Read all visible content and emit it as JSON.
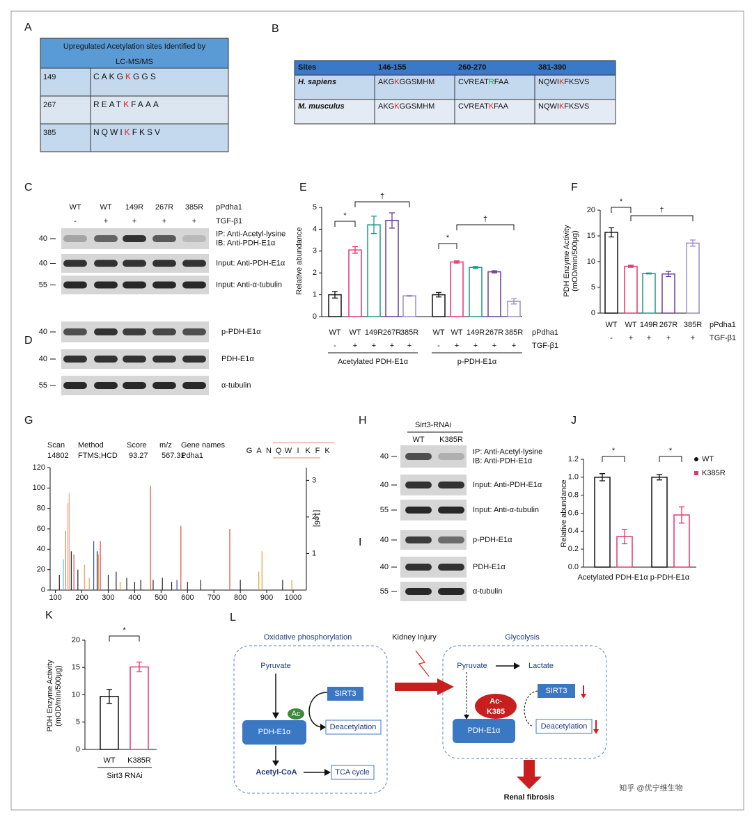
{
  "figure": {
    "A": {
      "letter": "A",
      "header": [
        "Upregulated Acetylation sites Identified by",
        "LC-MS/MS"
      ],
      "rows": [
        {
          "site": 149,
          "seq": [
            "CAKG",
            "K",
            "GGS"
          ]
        },
        {
          "site": 267,
          "seq": [
            "REAT",
            "K",
            "FAAA"
          ]
        },
        {
          "site": 385,
          "seq": [
            "NQWI",
            "K",
            "FKSV"
          ]
        }
      ]
    },
    "B": {
      "letter": "B",
      "header": [
        "Sites",
        "146-155",
        "260-270",
        "381-390"
      ],
      "rows": [
        {
          "species": "H. sapiens",
          "cells": [
            [
              "AKG",
              "K",
              "GGSMHM"
            ],
            [
              "CVREAT",
              "R",
              "FAA"
            ],
            [
              "NQWI",
              "K",
              "FKSVS"
            ]
          ],
          "colors": [
            "#e02020",
            "#1a9a50",
            "#e02020"
          ]
        },
        {
          "species": "M. musculus",
          "cells": [
            [
              "AKG",
              "K",
              "GGSMHM"
            ],
            [
              "CVREAT",
              "K",
              "FAA"
            ],
            [
              "NQWI",
              "K",
              "FKSVS"
            ]
          ],
          "colors": [
            "#e02020",
            "#e02020",
            "#e02020"
          ]
        }
      ]
    },
    "C": {
      "letter": "C",
      "lanes": [
        "WT",
        "WT",
        "149R",
        "267R",
        "385R"
      ],
      "lanes_label": "pPdha1",
      "tgf": [
        "-",
        "+",
        "+",
        "+",
        "+"
      ],
      "tgf_label": "TGF-β1",
      "blots": [
        {
          "mw": 40,
          "label": [
            "IP: Anti-Acetyl-lysine",
            "IB: Anti-PDH-E1α"
          ]
        },
        {
          "mw": 40,
          "label": [
            "Input: Anti-PDH-E1α"
          ]
        },
        {
          "mw": 55,
          "label": [
            "Input: Anti-α-tubulin"
          ]
        }
      ]
    },
    "D": {
      "letter": "D",
      "blots": [
        {
          "mw": 40,
          "label": [
            "p-PDH-E1α"
          ]
        },
        {
          "mw": 40,
          "label": [
            "PDH-E1α"
          ]
        },
        {
          "mw": 55,
          "label": [
            "α-tubulin"
          ]
        }
      ]
    },
    "H": {
      "letter": "H",
      "group": "Sirt3-RNAi",
      "lanes": [
        "WT",
        "K385R"
      ],
      "blots": [
        {
          "mw": 40,
          "label": [
            "IP: Anti-Acetyl-lysine",
            "IB: Anti-PDH-E1α"
          ]
        },
        {
          "mw": 40,
          "label": [
            "Input: Anti-PDH-E1α"
          ]
        },
        {
          "mw": 55,
          "label": [
            "Input: Anti-α-tubulin"
          ]
        }
      ]
    },
    "I": {
      "letter": "I",
      "blots": [
        {
          "mw": 40,
          "label": [
            "p-PDH-E1α"
          ]
        },
        {
          "mw": 40,
          "label": [
            "PDH-E1α"
          ]
        },
        {
          "mw": 55,
          "label": [
            "α-tubulin"
          ]
        }
      ]
    },
    "L": {
      "letter": "L",
      "left_title": "Oxidative phosphorylation",
      "injury": "Kidney Injury",
      "right_title": "Glycolysis",
      "pyruvate_l": "Pyruvate",
      "sirt3_l": "SIRT3",
      "ac": "Ac",
      "pdh_l": "PDH-E1α",
      "deacet_l": "Deacetylation",
      "acetylcoa": "Acetyl-CoA",
      "tca": "TCA cycle",
      "pyruvate_r": "Pyruvate",
      "lactate": "Lactate",
      "sirt3_r": "SIRT3",
      "ac_k385": [
        "Ac-",
        "K385"
      ],
      "pdh_r": "PDH-E1α",
      "deacet_r": "Deacetylation",
      "fibrosis": "Renal fibrosis"
    },
    "watermark": "知乎 @优宁维生物"
  },
  "chart_data": [
    {
      "type": "bar",
      "letter": "E",
      "ylabel": "Relative abundance",
      "ylim": [
        0,
        5
      ],
      "yticks": [
        0,
        1,
        2,
        3,
        4,
        5
      ],
      "categories": [
        "WT",
        "WT",
        "149R",
        "267R",
        "385R",
        "WT",
        "WT",
        "149R",
        "267R",
        "385R"
      ],
      "values": [
        1.0,
        3.05,
        4.2,
        4.4,
        0.95,
        1.0,
        2.5,
        2.25,
        2.05,
        0.7
      ],
      "errors": [
        0.15,
        0.15,
        0.4,
        0.35,
        0.02,
        0.1,
        0.05,
        0.05,
        0.05,
        0.12
      ],
      "colors": [
        "#111111",
        "#e8336d",
        "#1a9a8a",
        "#6a3d9a",
        "#9b8dc9",
        "#111111",
        "#e8336d",
        "#1a9a8a",
        "#6a3d9a",
        "#9b8dc9"
      ],
      "tgf": [
        "-",
        "+",
        "+",
        "+",
        "+",
        "-",
        "+",
        "+",
        "+",
        "+"
      ],
      "row_labels": [
        "pPdha1",
        "TGF-β1"
      ],
      "groups": [
        "Acetylated PDH-E1α",
        "p-PDH-E1α"
      ],
      "annotations": [
        "*",
        "†",
        "*",
        "†"
      ]
    },
    {
      "type": "bar",
      "letter": "F",
      "ylabel": [
        "PDH Enzyme Activity",
        "(mOD/min/500μg)"
      ],
      "ylim": [
        0,
        20
      ],
      "yticks": [
        0,
        5,
        10,
        15,
        20
      ],
      "categories": [
        "WT",
        "WT",
        "149R",
        "267R",
        "385R"
      ],
      "values": [
        15.7,
        9.1,
        7.7,
        7.6,
        13.6
      ],
      "errors": [
        0.9,
        0.2,
        0.1,
        0.5,
        0.6
      ],
      "colors": [
        "#111111",
        "#e8336d",
        "#1a9a8a",
        "#6a3d9a",
        "#9b8dc9"
      ],
      "tgf": [
        "-",
        "+",
        "+",
        "+",
        "+"
      ],
      "row_labels": [
        "pPdha1",
        "TGF-β1"
      ],
      "annotations": [
        "*",
        "†"
      ]
    },
    {
      "type": "stem",
      "letter": "G",
      "header_labels": [
        "Scan",
        "Method",
        "Score",
        "m/z",
        "Gene names"
      ],
      "header_values": [
        14802,
        "FTMS;HCD",
        93.27,
        567.31,
        "Pdha1"
      ],
      "sequence": [
        "G",
        "A",
        "N",
        "Q",
        "W",
        "I",
        "K",
        "F",
        "K"
      ],
      "xlim": [
        80,
        1050
      ],
      "xticks": [
        100,
        200,
        300,
        400,
        500,
        600,
        700,
        800,
        900,
        1000
      ],
      "ylim": [
        0,
        120
      ],
      "yticks": [
        0,
        20,
        40,
        60,
        80,
        100,
        120
      ],
      "y2lim": [
        0,
        3.35
      ],
      "y2ticks": [
        1,
        2,
        3
      ],
      "y2label": "[1e6]",
      "x": [
        115,
        130,
        139,
        147,
        152,
        160,
        170,
        185,
        210,
        228,
        245,
        258,
        263,
        270,
        300,
        330,
        345,
        370,
        400,
        423,
        460,
        470,
        505,
        540,
        560,
        575,
        600,
        650,
        760,
        800,
        870,
        882,
        960,
        995
      ],
      "values": [
        15,
        30,
        58,
        85,
        95,
        38,
        35,
        20,
        25,
        12,
        48,
        38,
        35,
        48,
        15,
        18,
        8,
        12,
        8,
        10,
        102,
        10,
        12,
        8,
        10,
        63,
        8,
        10,
        60,
        10,
        18,
        38,
        10,
        10
      ],
      "colors": [
        "#222222",
        "#5bc0de",
        "#e08050",
        "#f0a080",
        "#f0a080",
        "#222222",
        "#e05050",
        "#222222",
        "#f0a050",
        "#f0a050",
        "#3050c0",
        "#222222",
        "#f0a050",
        "#e04040",
        "#222222",
        "#222222",
        "#e0a030",
        "#222222",
        "#222222",
        "#222222",
        "#e05040",
        "#222222",
        "#222222",
        "#222222",
        "#3050c0",
        "#e05040",
        "#222222",
        "#222222",
        "#e05040",
        "#222222",
        "#e0a030",
        "#e0a030",
        "#222222",
        "#e0a030"
      ]
    },
    {
      "type": "grouped_bar",
      "letter": "J",
      "ylabel": "Relative abundance",
      "ylim": [
        0,
        1.2
      ],
      "yticks": [
        {
          "value": 0,
          "label": "0.0"
        },
        0.2,
        0.4,
        0.6,
        0.8,
        {
          "value": 1,
          "label": "1.0"
        },
        1.2
      ],
      "categories": [
        "Acetylated PDH-E1α",
        "p-PDH-E1α"
      ],
      "legend": "right",
      "series": [
        {
          "name": "WT",
          "color": "#111111",
          "values": [
            1.0,
            1.0
          ],
          "errors": [
            0.04,
            0.03
          ]
        },
        {
          "name": "K385R",
          "color": "#e8336d",
          "values": [
            0.34,
            0.58
          ],
          "errors": [
            0.08,
            0.09
          ]
        }
      ],
      "annotations": [
        "*",
        "*"
      ]
    },
    {
      "type": "bar",
      "letter": "K",
      "ylabel": [
        "PDH Enzyme Activity",
        "(mOD/min/500μg)"
      ],
      "ylim": [
        0,
        20
      ],
      "yticks": [
        0,
        5,
        10,
        15,
        20
      ],
      "categories": [
        "WT",
        "K385R"
      ],
      "values": [
        9.7,
        15.1
      ],
      "errors": [
        1.3,
        0.9
      ],
      "colors": [
        "#111111",
        "#e8336d"
      ],
      "xlabel": "Sirt3 RNAi",
      "annotations": [
        "*"
      ]
    }
  ]
}
